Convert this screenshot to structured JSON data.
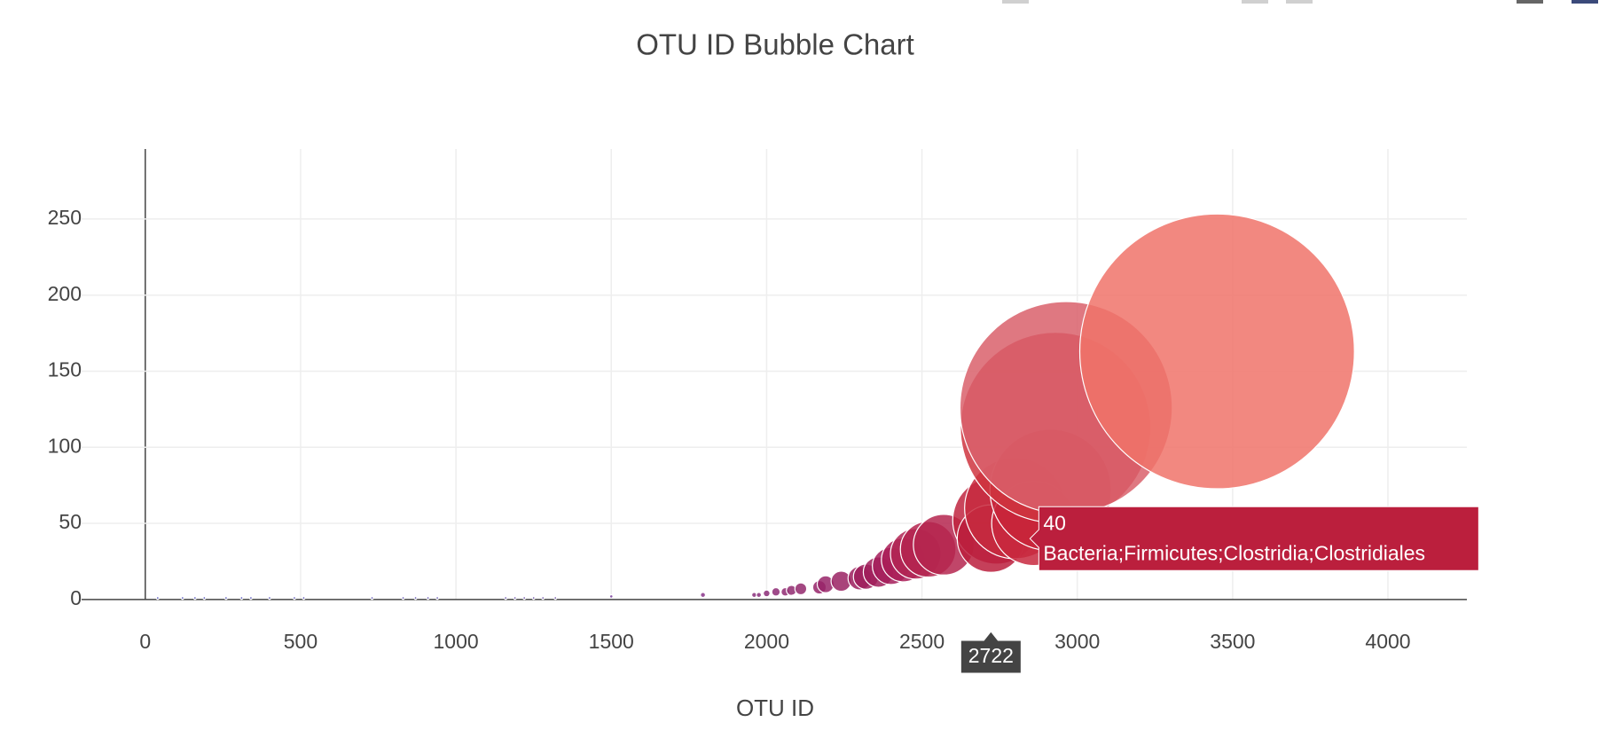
{
  "chart_data": {
    "type": "bubble",
    "title": "OTU ID Bubble Chart",
    "x_label": "OTU ID",
    "x": [
      40,
      120,
      160,
      190,
      260,
      310,
      340,
      400,
      480,
      510,
      730,
      830,
      870,
      910,
      940,
      1160,
      1190,
      1220,
      1250,
      1280,
      1320,
      1500,
      1795,
      1960,
      1975,
      2000,
      2030,
      2060,
      2080,
      2110,
      2170,
      2190,
      2240,
      2300,
      2320,
      2360,
      2400,
      2440,
      2480,
      2520,
      2570,
      2740,
      2722,
      2800,
      2860,
      2914,
      2930,
      2964,
      3450
    ],
    "values": [
      1,
      1,
      1,
      1,
      1,
      1,
      1,
      1,
      1,
      1,
      1,
      1,
      1,
      1,
      1,
      1,
      1,
      1,
      1,
      1,
      1,
      2,
      3,
      3,
      3,
      4,
      5,
      5,
      6,
      7,
      8,
      10,
      12,
      14,
      15,
      18,
      22,
      26,
      30,
      33,
      36,
      52,
      40,
      60,
      50,
      72,
      113,
      126,
      163
    ],
    "colors": [
      "#3d3fb5",
      "#3d3fb5",
      "#3e3fb4",
      "#3e3fb4",
      "#403fb3",
      "#403fb3",
      "#413fb2",
      "#423fb2",
      "#443fb0",
      "#443fb0",
      "#4a3fac",
      "#4d3fab",
      "#4e3faa",
      "#4f3fa9",
      "#503fa8",
      "#583ea4",
      "#593ea3",
      "#5a3ea2",
      "#5b3ea1",
      "#5c3ea0",
      "#5d3e9f",
      "#7a3f9e",
      "#8a3589",
      "#8a2f7b",
      "#8a2f7b",
      "#8c2d78",
      "#8e2c75",
      "#902a72",
      "#912a70",
      "#93286c",
      "#97246a",
      "#982468",
      "#9a2263",
      "#9c1f5d",
      "#9d1f5c",
      "#a01e5b",
      "#a51d5a",
      "#aa1d57",
      "#b22454",
      "#b4234f",
      "#b5264f",
      "#c02540",
      "#bb1f3d",
      "#c72a3e",
      "#c8283e",
      "#c8243a",
      "#cf3540",
      "#d9606b",
      "#f0736a"
    ],
    "xlim": [
      -205,
      4254
    ],
    "ylim": [
      -10,
      296
    ],
    "xticks": [
      0,
      500,
      1000,
      1500,
      2000,
      2500,
      3000,
      3500,
      4000
    ],
    "yticks": [
      0,
      50,
      100,
      150,
      200,
      250
    ],
    "grid": true,
    "hover": {
      "x": 2722,
      "y": 40,
      "text": "Bacteria;Firmicutes;Clostridia;Clostridiales"
    }
  }
}
